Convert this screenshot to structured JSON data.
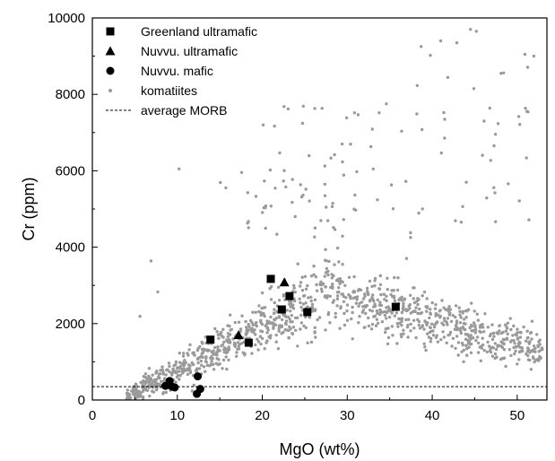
{
  "chart_data": {
    "type": "scatter",
    "xlabel": "MgO (wt%)",
    "ylabel": "Cr (ppm)",
    "xlim": [
      0,
      53.5
    ],
    "ylim": [
      0,
      10000
    ],
    "x_ticks": [
      0,
      10,
      20,
      30,
      40,
      50
    ],
    "y_ticks": [
      0,
      2000,
      4000,
      6000,
      8000,
      10000
    ],
    "grid": false,
    "legend_position": "top-left",
    "colors": {
      "markers": "#000000",
      "komatiites": "#9a9a9a",
      "morb_line": "#000000"
    },
    "series": [
      {
        "name": "Greenland ultramafic",
        "marker": "square",
        "points": [
          [
            21,
            3170
          ],
          [
            22.3,
            2370
          ],
          [
            23.2,
            2720
          ],
          [
            25.3,
            2300
          ],
          [
            35.7,
            2440
          ],
          [
            13.9,
            1580
          ],
          [
            18.4,
            1500
          ]
        ]
      },
      {
        "name": "Nuvvu. ultramafic",
        "marker": "triangle",
        "points": [
          [
            17.2,
            1700
          ],
          [
            22.6,
            3080
          ]
        ]
      },
      {
        "name": "Nuvvu. mafic",
        "marker": "circle",
        "points": [
          [
            8.6,
            370
          ],
          [
            9.1,
            500
          ],
          [
            9.4,
            350
          ],
          [
            9.7,
            330
          ],
          [
            12.4,
            620
          ],
          [
            12.7,
            290
          ],
          [
            12.3,
            160
          ]
        ]
      },
      {
        "name": "komatiites",
        "marker": "small-dot",
        "generated_cloud": true
      },
      {
        "name": "average MORB",
        "marker": "dashed-line",
        "y": 350
      }
    ]
  }
}
